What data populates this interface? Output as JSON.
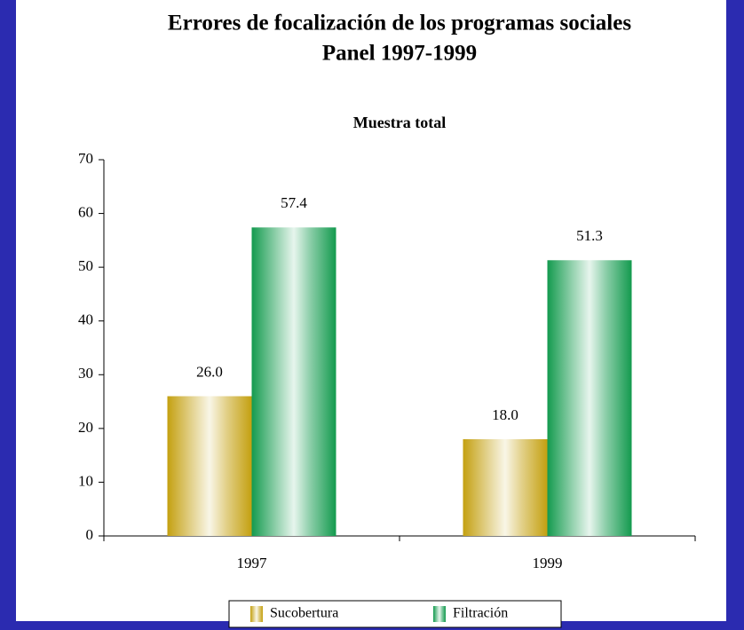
{
  "chart_data": {
    "type": "bar",
    "title": "Errores de focalización de los programas sociales",
    "title_line2": "Panel 1997-1999",
    "subtitle": "Muestra total",
    "categories": [
      "1997",
      "1999"
    ],
    "series": [
      {
        "name": "Sucobertura",
        "color": "#c4a010",
        "values": [
          26.0,
          18.0
        ],
        "value_labels": [
          "26.0",
          "18.0"
        ]
      },
      {
        "name": "Filtración",
        "color": "#139a4e",
        "values": [
          57.4,
          51.3
        ],
        "value_labels": [
          "57.4",
          "51.3"
        ]
      }
    ],
    "ylim": [
      0,
      70
    ],
    "yticks": [
      0,
      10,
      20,
      30,
      40,
      50,
      60,
      70
    ],
    "legend": "bottom"
  }
}
